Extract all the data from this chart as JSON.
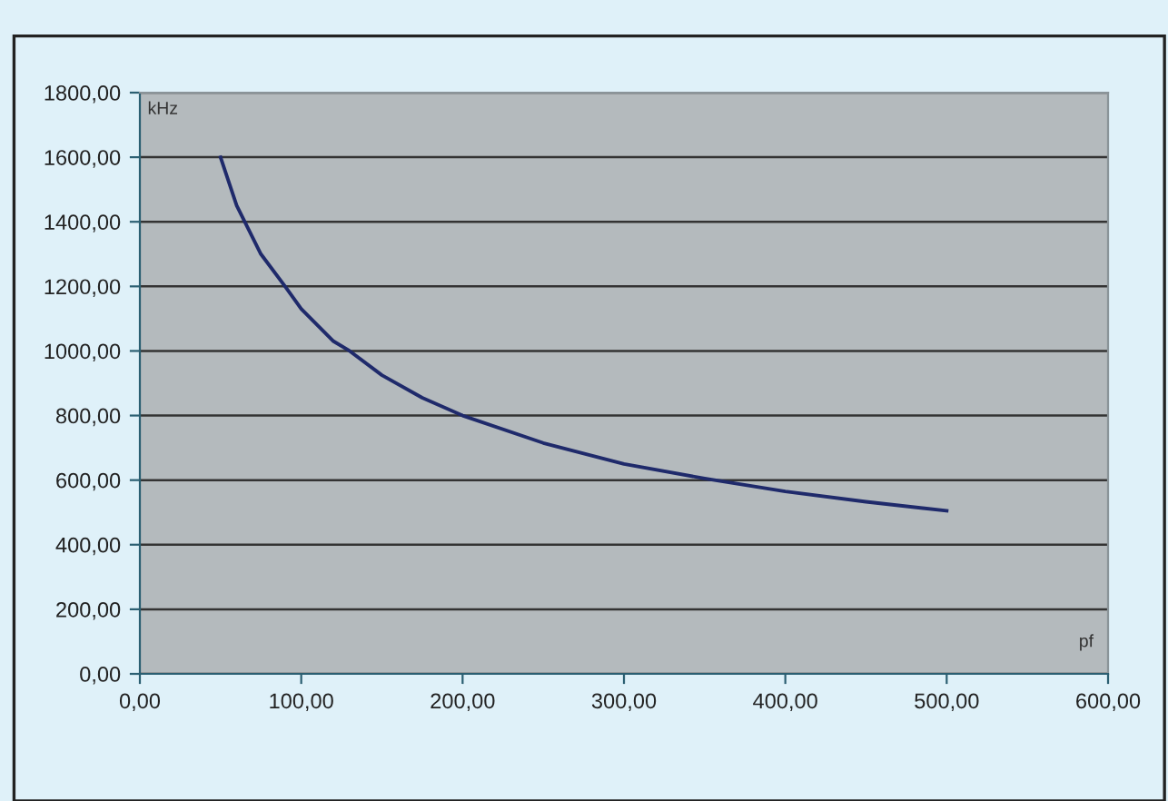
{
  "chart_data": {
    "type": "line",
    "xlabel": "pf",
    "ylabel": "kHz",
    "x": [
      50,
      60,
      75,
      90,
      100,
      120,
      130,
      150,
      175,
      200,
      250,
      300,
      350,
      400,
      450,
      500
    ],
    "series": [
      {
        "color": "#1f2a6b",
        "values": [
          1600,
          1450,
          1300,
          1200,
          1130,
          1030,
          1000,
          925,
          855,
          800,
          715,
          650,
          605,
          565,
          533,
          505
        ]
      }
    ],
    "xlim": [
      0,
      600
    ],
    "ylim": [
      0,
      1800
    ],
    "xticks": [
      {
        "value": 0,
        "label": "0,00"
      },
      {
        "value": 100,
        "label": "100,00"
      },
      {
        "value": 200,
        "label": "200,00"
      },
      {
        "value": 300,
        "label": "300,00"
      },
      {
        "value": 400,
        "label": "400,00"
      },
      {
        "value": 500,
        "label": "500,00"
      },
      {
        "value": 600,
        "label": "600,00"
      }
    ],
    "yticks": [
      {
        "value": 0,
        "label": "0,00"
      },
      {
        "value": 200,
        "label": "200,00"
      },
      {
        "value": 400,
        "label": "400,00"
      },
      {
        "value": 600,
        "label": "600,00"
      },
      {
        "value": 800,
        "label": "800,00"
      },
      {
        "value": 1000,
        "label": "1000,00"
      },
      {
        "value": 1200,
        "label": "1200,00"
      },
      {
        "value": 1400,
        "label": "1400,00"
      },
      {
        "value": 1600,
        "label": "1600,00"
      },
      {
        "value": 1800,
        "label": "1800,00"
      }
    ],
    "grid": "y",
    "marker": "none",
    "line_style": "solid"
  }
}
